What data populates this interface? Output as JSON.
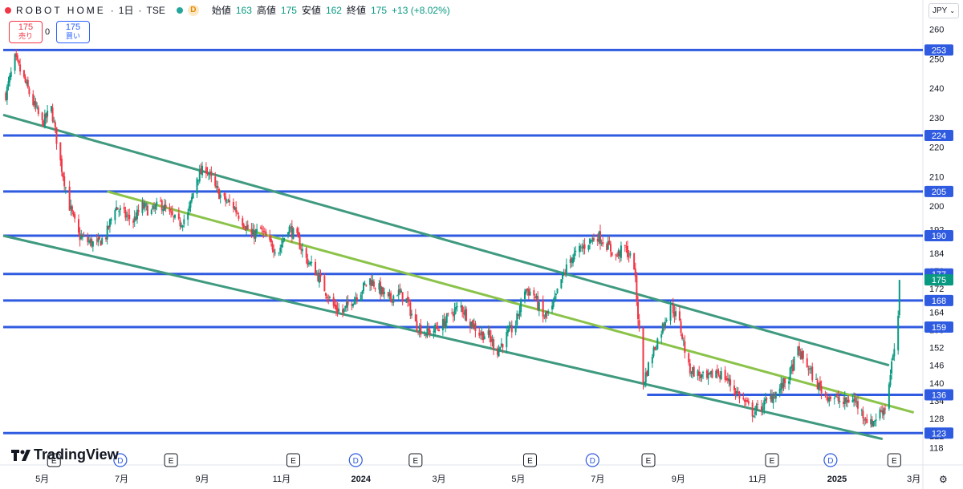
{
  "header": {
    "symbol": "ROBOT HOME",
    "interval": "1日",
    "exchange": "TSE",
    "badge": "D",
    "open_label": "始値",
    "open": "163",
    "high_label": "高値",
    "high": "175",
    "low_label": "安値",
    "low": "162",
    "close_label": "終値",
    "close": "175",
    "change": "+13 (+8.02%)",
    "sep": "·"
  },
  "order": {
    "sell_price": "175",
    "sell_label": "売り",
    "spread": "0",
    "buy_price": "175",
    "buy_label": "買い"
  },
  "currency": {
    "label": "JPY"
  },
  "branding": {
    "logo_text": "TradingView"
  },
  "colors": {
    "up": "#089981",
    "down": "#f23645",
    "hline": "#2f5be0",
    "channel": "#3f9a7f",
    "midline": "#8bc34a",
    "axis_text": "#131722",
    "grid": "#f0f3fa"
  },
  "chart_data": {
    "type": "candlestick",
    "title": "",
    "xlabel": "",
    "ylabel": "",
    "ylim": [
      116,
      264
    ],
    "y_ticks": [
      118,
      122,
      128,
      134,
      140,
      146,
      152,
      158,
      164,
      172,
      178,
      184,
      192,
      200,
      210,
      220,
      230,
      240,
      250,
      260
    ],
    "x_ticks": [
      {
        "date": "2023-05-01",
        "label": "5月"
      },
      {
        "date": "2023-07-01",
        "label": "7月"
      },
      {
        "date": "2023-09-01",
        "label": "9月"
      },
      {
        "date": "2023-11-01",
        "label": "11月"
      },
      {
        "date": "2024-01-01",
        "label": "2024"
      },
      {
        "date": "2024-03-01",
        "label": "3月"
      },
      {
        "date": "2024-05-01",
        "label": "5月"
      },
      {
        "date": "2024-07-01",
        "label": "7月"
      },
      {
        "date": "2024-09-01",
        "label": "9月"
      },
      {
        "date": "2024-11-01",
        "label": "11月"
      },
      {
        "date": "2025-01-01",
        "label": "2025"
      },
      {
        "date": "2025-03-01",
        "label": "3月"
      }
    ],
    "horizontal_levels": [
      {
        "value": 253,
        "start": "2023-04-01"
      },
      {
        "value": 224,
        "start": "2023-04-01"
      },
      {
        "value": 205,
        "start": "2023-04-01"
      },
      {
        "value": 190,
        "start": "2023-04-01"
      },
      {
        "value": 177,
        "start": "2023-04-01"
      },
      {
        "value": 168,
        "start": "2023-04-01"
      },
      {
        "value": 159,
        "start": "2023-04-01"
      },
      {
        "value": 136,
        "start": "2024-08-08"
      },
      {
        "value": 123,
        "start": "2023-04-01"
      }
    ],
    "last_price": 175,
    "trendlines": [
      {
        "name": "upper channel",
        "from": {
          "date": "2023-04-01",
          "value": 231
        },
        "to": {
          "date": "2025-02-10",
          "value": 146
        }
      },
      {
        "name": "middle line",
        "from": {
          "date": "2023-06-20",
          "value": 205
        },
        "to": {
          "date": "2025-03-01",
          "value": 130
        }
      },
      {
        "name": "lower channel",
        "from": {
          "date": "2023-04-01",
          "value": 190
        },
        "to": {
          "date": "2025-02-05",
          "value": 121
        }
      }
    ],
    "event_markers": [
      {
        "date": "2023-05-10",
        "label": "E"
      },
      {
        "date": "2023-06-30",
        "label": "D"
      },
      {
        "date": "2023-08-08",
        "label": "E"
      },
      {
        "date": "2023-11-10",
        "label": "E"
      },
      {
        "date": "2023-12-28",
        "label": "D"
      },
      {
        "date": "2024-02-12",
        "label": "E"
      },
      {
        "date": "2024-05-10",
        "label": "E"
      },
      {
        "date": "2024-06-27",
        "label": "D"
      },
      {
        "date": "2024-08-09",
        "label": "E"
      },
      {
        "date": "2024-11-12",
        "label": "E"
      },
      {
        "date": "2024-12-27",
        "label": "D"
      },
      {
        "date": "2025-02-14",
        "label": "E"
      }
    ],
    "price_path": [
      [
        "2023-04-03",
        238
      ],
      [
        "2023-04-10",
        250
      ],
      [
        "2023-04-17",
        243
      ],
      [
        "2023-04-24",
        235
      ],
      [
        "2023-05-01",
        228
      ],
      [
        "2023-05-08",
        233
      ],
      [
        "2023-05-15",
        215
      ],
      [
        "2023-05-22",
        200
      ],
      [
        "2023-05-29",
        190
      ],
      [
        "2023-06-05",
        188
      ],
      [
        "2023-06-12",
        187
      ],
      [
        "2023-06-19",
        190
      ],
      [
        "2023-06-26",
        200
      ],
      [
        "2023-07-03",
        197
      ],
      [
        "2023-07-10",
        195
      ],
      [
        "2023-07-17",
        200
      ],
      [
        "2023-07-24",
        198
      ],
      [
        "2023-07-31",
        201
      ],
      [
        "2023-08-07",
        197
      ],
      [
        "2023-08-14",
        194
      ],
      [
        "2023-08-21",
        197
      ],
      [
        "2023-08-28",
        210
      ],
      [
        "2023-09-04",
        213
      ],
      [
        "2023-09-11",
        206
      ],
      [
        "2023-09-18",
        202
      ],
      [
        "2023-09-25",
        200
      ],
      [
        "2023-10-02",
        195
      ],
      [
        "2023-10-09",
        190
      ],
      [
        "2023-10-16",
        192
      ],
      [
        "2023-10-23",
        187
      ],
      [
        "2023-10-30",
        185
      ],
      [
        "2023-11-06",
        193
      ],
      [
        "2023-11-13",
        189
      ],
      [
        "2023-11-20",
        182
      ],
      [
        "2023-11-27",
        178
      ],
      [
        "2023-12-04",
        172
      ],
      [
        "2023-12-11",
        166
      ],
      [
        "2023-12-18",
        164
      ],
      [
        "2023-12-25",
        168
      ],
      [
        "2024-01-08",
        175
      ],
      [
        "2024-01-15",
        172
      ],
      [
        "2024-01-22",
        168
      ],
      [
        "2024-01-29",
        171
      ],
      [
        "2024-02-05",
        168
      ],
      [
        "2024-02-12",
        160
      ],
      [
        "2024-02-19",
        157
      ],
      [
        "2024-02-26",
        158
      ],
      [
        "2024-03-04",
        160
      ],
      [
        "2024-03-11",
        164
      ],
      [
        "2024-03-18",
        166
      ],
      [
        "2024-03-25",
        161
      ],
      [
        "2024-04-01",
        157
      ],
      [
        "2024-04-08",
        156
      ],
      [
        "2024-04-15",
        151
      ],
      [
        "2024-04-22",
        156
      ],
      [
        "2024-04-29",
        160
      ],
      [
        "2024-05-06",
        172
      ],
      [
        "2024-05-13",
        170
      ],
      [
        "2024-05-20",
        162
      ],
      [
        "2024-05-27",
        165
      ],
      [
        "2024-06-03",
        175
      ],
      [
        "2024-06-10",
        182
      ],
      [
        "2024-06-17",
        185
      ],
      [
        "2024-06-24",
        188
      ],
      [
        "2024-07-01",
        190
      ],
      [
        "2024-07-08",
        187
      ],
      [
        "2024-07-15",
        183
      ],
      [
        "2024-07-22",
        186
      ],
      [
        "2024-07-29",
        180
      ],
      [
        "2024-08-05",
        140
      ],
      [
        "2024-08-12",
        150
      ],
      [
        "2024-08-19",
        158
      ],
      [
        "2024-08-26",
        167
      ],
      [
        "2024-09-02",
        160
      ],
      [
        "2024-09-09",
        145
      ],
      [
        "2024-09-16",
        143
      ],
      [
        "2024-09-23",
        141
      ],
      [
        "2024-09-30",
        144
      ],
      [
        "2024-10-07",
        142
      ],
      [
        "2024-10-14",
        138
      ],
      [
        "2024-10-21",
        134
      ],
      [
        "2024-10-28",
        130
      ],
      [
        "2024-11-04",
        132
      ],
      [
        "2024-11-11",
        135
      ],
      [
        "2024-11-18",
        138
      ],
      [
        "2024-11-25",
        142
      ],
      [
        "2024-12-02",
        151
      ],
      [
        "2024-12-09",
        146
      ],
      [
        "2024-12-16",
        140
      ],
      [
        "2024-12-23",
        136
      ],
      [
        "2024-12-30",
        135
      ],
      [
        "2025-01-06",
        133
      ],
      [
        "2025-01-13",
        135
      ],
      [
        "2025-01-20",
        130
      ],
      [
        "2025-01-27",
        126
      ],
      [
        "2025-02-03",
        130
      ],
      [
        "2025-02-07",
        132
      ],
      [
        "2025-02-10",
        140
      ],
      [
        "2025-02-12",
        147
      ],
      [
        "2025-02-14",
        150
      ],
      [
        "2025-02-17",
        163
      ],
      [
        "2025-02-18",
        175
      ]
    ]
  }
}
